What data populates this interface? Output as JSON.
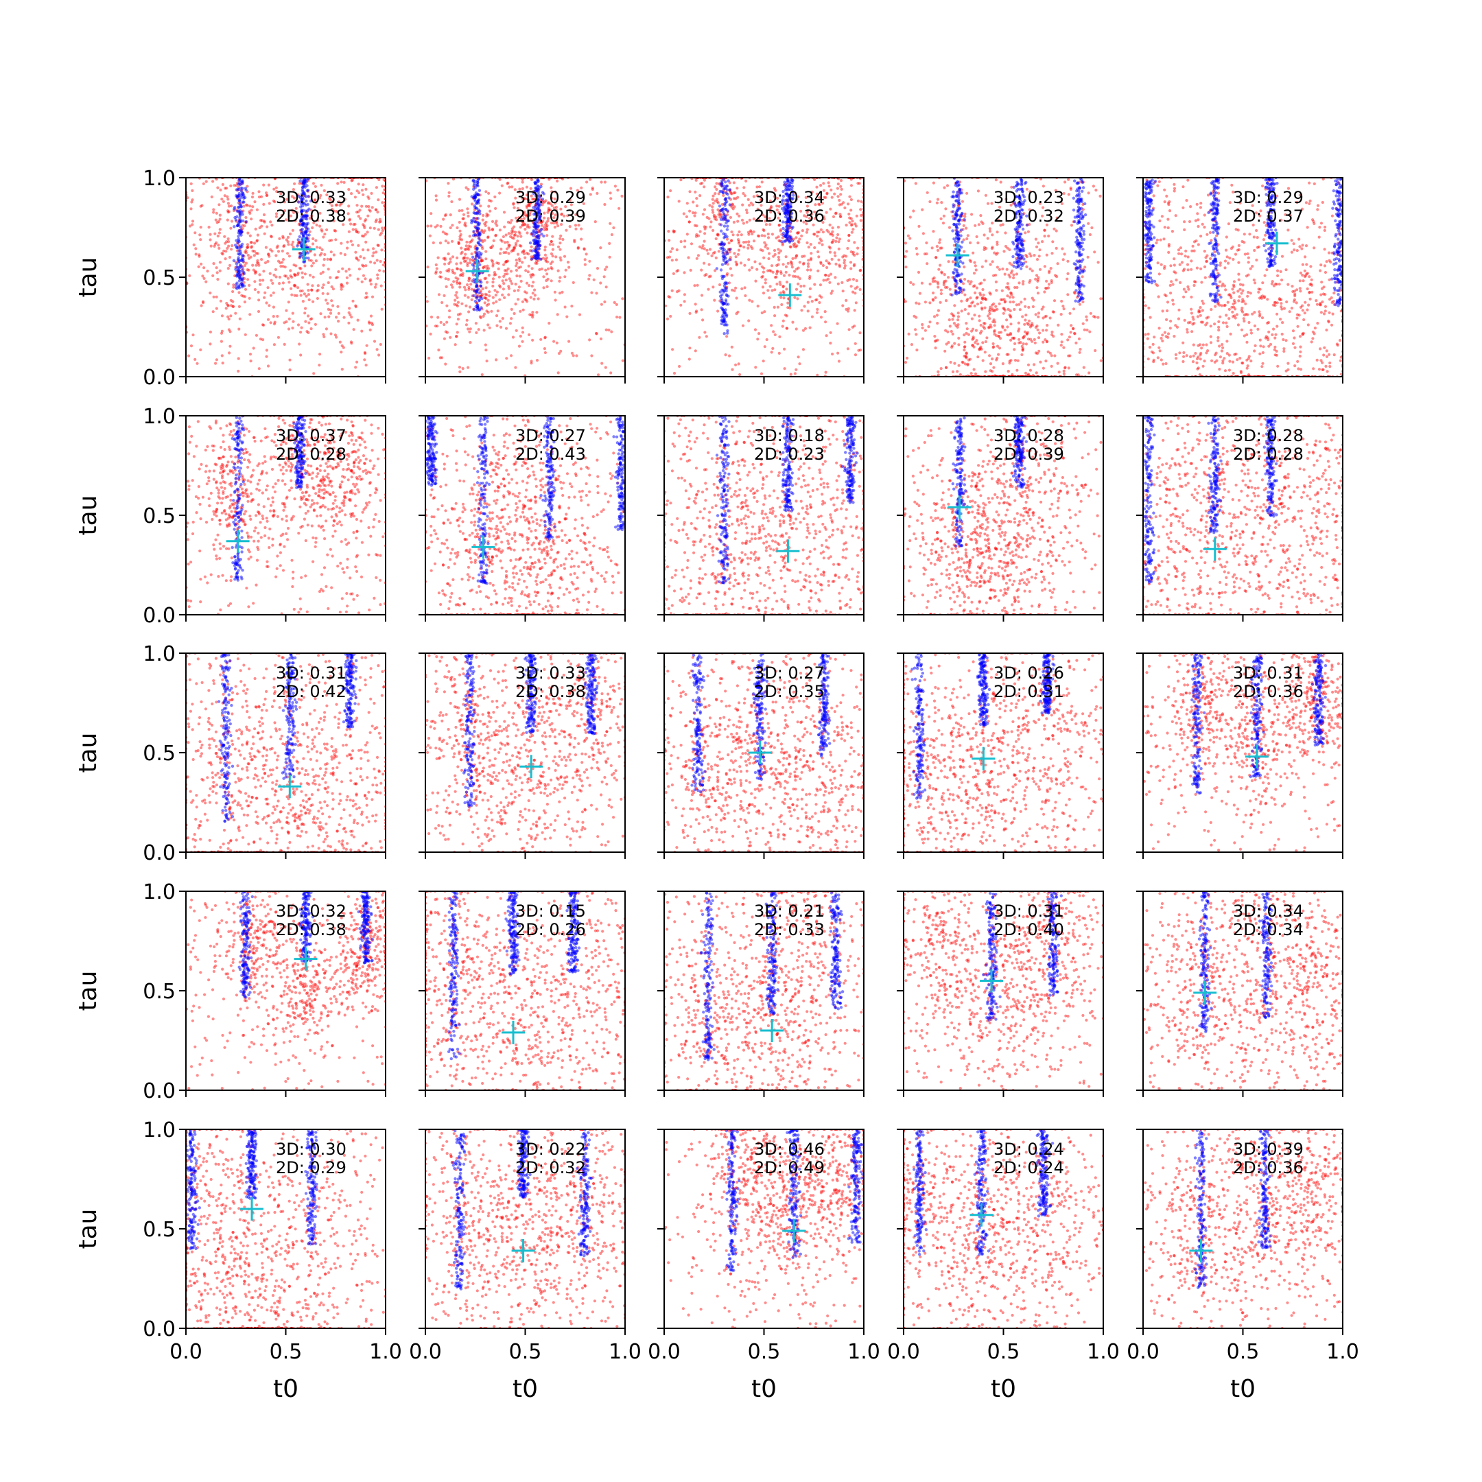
{
  "chart_data": {
    "type": "scatter",
    "layout": "5x5 grid of subplots, shared axes",
    "xlabel": "t0",
    "ylabel": "tau",
    "xlim": [
      0,
      1
    ],
    "ylim": [
      0,
      1
    ],
    "xticks": [
      "0.0",
      "0.5",
      "1.0"
    ],
    "yticks": [
      "0.0",
      "0.5",
      "1.0"
    ],
    "grid": false,
    "colors": {
      "red_points": "#ff0000",
      "blue_points": "#0000ff",
      "marker": "#17becf"
    },
    "panels": [
      {
        "row": 0,
        "col": 0,
        "label3d": "3D: 0.33",
        "label2d": "2D: 0.38",
        "marker": [
          0.59,
          0.64
        ],
        "blue_stripes": [
          0.27,
          0.59
        ],
        "red_clusters": [
          [
            0.25,
            0.65
          ],
          [
            0.59,
            0.55
          ],
          [
            0.9,
            0.8
          ]
        ],
        "red_sigma": 0.22
      },
      {
        "row": 0,
        "col": 1,
        "label3d": "3D: 0.29",
        "label2d": "2D: 0.39",
        "marker": [
          0.26,
          0.53
        ],
        "blue_stripes": [
          0.26,
          0.56
        ],
        "red_clusters": [
          [
            0.25,
            0.55
          ],
          [
            0.55,
            0.75
          ]
        ],
        "red_sigma": 0.18
      },
      {
        "row": 0,
        "col": 2,
        "label3d": "3D: 0.34",
        "label2d": "2D: 0.36",
        "marker": [
          0.63,
          0.41
        ],
        "blue_stripes": [
          0.3,
          0.62
        ],
        "red_clusters": [
          [
            0.62,
            0.6
          ],
          [
            0.9,
            0.75
          ],
          [
            0.3,
            0.8
          ]
        ],
        "red_sigma": 0.2
      },
      {
        "row": 0,
        "col": 3,
        "label3d": "3D: 0.23",
        "label2d": "2D: 0.32",
        "marker": [
          0.27,
          0.61
        ],
        "blue_stripes": [
          0.27,
          0.58,
          0.88
        ],
        "red_clusters": [
          [
            0.3,
            0.4
          ],
          [
            0.6,
            0.3
          ],
          [
            0.5,
            0.15
          ]
        ],
        "red_sigma": 0.3
      },
      {
        "row": 0,
        "col": 4,
        "label3d": "3D: 0.29",
        "label2d": "2D: 0.37",
        "marker": [
          0.67,
          0.67
        ],
        "blue_stripes": [
          0.03,
          0.36,
          0.64,
          0.98
        ],
        "red_clusters": [
          [
            0.5,
            0.2
          ],
          [
            0.2,
            0.4
          ],
          [
            0.85,
            0.3
          ]
        ],
        "red_sigma": 0.3
      },
      {
        "row": 1,
        "col": 0,
        "label3d": "3D: 0.37",
        "label2d": "2D: 0.28",
        "marker": [
          0.26,
          0.37
        ],
        "blue_stripes": [
          0.26,
          0.57
        ],
        "red_clusters": [
          [
            0.25,
            0.6
          ],
          [
            0.57,
            0.75
          ],
          [
            0.8,
            0.7
          ]
        ],
        "red_sigma": 0.17
      },
      {
        "row": 1,
        "col": 1,
        "label3d": "3D: 0.27",
        "label2d": "2D: 0.43",
        "marker": [
          0.29,
          0.34
        ],
        "blue_stripes": [
          0.29,
          0.62,
          0.03,
          0.98
        ],
        "red_clusters": [
          [
            0.3,
            0.3
          ],
          [
            0.6,
            0.15
          ],
          [
            0.5,
            0.5
          ]
        ],
        "red_sigma": 0.3
      },
      {
        "row": 1,
        "col": 2,
        "label3d": "3D: 0.18",
        "label2d": "2D: 0.23",
        "marker": [
          0.62,
          0.32
        ],
        "blue_stripes": [
          0.3,
          0.62,
          0.93
        ],
        "red_clusters": [
          [
            0.5,
            0.5
          ],
          [
            0.2,
            0.3
          ],
          [
            0.8,
            0.4
          ]
        ],
        "red_sigma": 0.32
      },
      {
        "row": 1,
        "col": 3,
        "label3d": "3D: 0.28",
        "label2d": "2D: 0.39",
        "marker": [
          0.28,
          0.54
        ],
        "blue_stripes": [
          0.28,
          0.58
        ],
        "red_clusters": [
          [
            0.25,
            0.35
          ],
          [
            0.6,
            0.6
          ],
          [
            0.5,
            0.2
          ]
        ],
        "red_sigma": 0.24
      },
      {
        "row": 1,
        "col": 4,
        "label3d": "3D: 0.28",
        "label2d": "2D: 0.28",
        "marker": [
          0.36,
          0.33
        ],
        "blue_stripes": [
          0.03,
          0.36,
          0.64
        ],
        "red_clusters": [
          [
            0.5,
            0.5
          ],
          [
            0.2,
            0.4
          ],
          [
            0.8,
            0.5
          ]
        ],
        "red_sigma": 0.3
      },
      {
        "row": 2,
        "col": 0,
        "label3d": "3D: 0.31",
        "label2d": "2D: 0.42",
        "marker": [
          0.52,
          0.33
        ],
        "blue_stripes": [
          0.2,
          0.52,
          0.82
        ],
        "red_clusters": [
          [
            0.5,
            0.4
          ],
          [
            0.2,
            0.3
          ],
          [
            0.8,
            0.3
          ]
        ],
        "red_sigma": 0.3
      },
      {
        "row": 2,
        "col": 1,
        "label3d": "3D: 0.33",
        "label2d": "2D: 0.38",
        "marker": [
          0.53,
          0.43
        ],
        "blue_stripes": [
          0.22,
          0.53,
          0.83
        ],
        "red_clusters": [
          [
            0.25,
            0.6
          ],
          [
            0.5,
            0.4
          ],
          [
            0.8,
            0.7
          ]
        ],
        "red_sigma": 0.24
      },
      {
        "row": 2,
        "col": 2,
        "label3d": "3D: 0.27",
        "label2d": "2D: 0.35",
        "marker": [
          0.48,
          0.5
        ],
        "blue_stripes": [
          0.17,
          0.48,
          0.8
        ],
        "red_clusters": [
          [
            0.2,
            0.4
          ],
          [
            0.5,
            0.5
          ],
          [
            0.8,
            0.3
          ]
        ],
        "red_sigma": 0.27
      },
      {
        "row": 2,
        "col": 3,
        "label3d": "3D: 0.26",
        "label2d": "2D: 0.31",
        "marker": [
          0.4,
          0.47
        ],
        "blue_stripes": [
          0.08,
          0.4,
          0.72
        ],
        "red_clusters": [
          [
            0.1,
            0.4
          ],
          [
            0.4,
            0.3
          ],
          [
            0.7,
            0.5
          ]
        ],
        "red_sigma": 0.28
      },
      {
        "row": 2,
        "col": 4,
        "label3d": "3D: 0.31",
        "label2d": "2D: 0.36",
        "marker": [
          0.57,
          0.48
        ],
        "blue_stripes": [
          0.27,
          0.57,
          0.88
        ],
        "red_clusters": [
          [
            0.3,
            0.7
          ],
          [
            0.57,
            0.6
          ],
          [
            0.87,
            0.75
          ]
        ],
        "red_sigma": 0.17
      },
      {
        "row": 3,
        "col": 0,
        "label3d": "3D: 0.32",
        "label2d": "2D: 0.38",
        "marker": [
          0.6,
          0.66
        ],
        "blue_stripes": [
          0.3,
          0.6,
          0.9
        ],
        "red_clusters": [
          [
            0.9,
            0.7
          ],
          [
            0.6,
            0.5
          ],
          [
            0.35,
            0.75
          ]
        ],
        "red_sigma": 0.15
      },
      {
        "row": 3,
        "col": 1,
        "label3d": "3D: 0.15",
        "label2d": "2D: 0.26",
        "marker": [
          0.44,
          0.29
        ],
        "blue_stripes": [
          0.14,
          0.44,
          0.74
        ],
        "red_clusters": [
          [
            0.1,
            0.6
          ],
          [
            0.45,
            0.4
          ],
          [
            0.75,
            0.5
          ]
        ],
        "red_sigma": 0.27
      },
      {
        "row": 3,
        "col": 2,
        "label3d": "3D: 0.21",
        "label2d": "2D: 0.33",
        "marker": [
          0.54,
          0.3
        ],
        "blue_stripes": [
          0.22,
          0.54,
          0.86
        ],
        "red_clusters": [
          [
            0.25,
            0.35
          ],
          [
            0.55,
            0.35
          ],
          [
            0.7,
            0.75
          ]
        ],
        "red_sigma": 0.25
      },
      {
        "row": 3,
        "col": 3,
        "label3d": "3D: 0.31",
        "label2d": "2D: 0.40",
        "marker": [
          0.44,
          0.55
        ],
        "blue_stripes": [
          0.44,
          0.75
        ],
        "red_clusters": [
          [
            0.2,
            0.7
          ],
          [
            0.5,
            0.5
          ],
          [
            0.75,
            0.75
          ]
        ],
        "red_sigma": 0.22
      },
      {
        "row": 3,
        "col": 4,
        "label3d": "3D: 0.34",
        "label2d": "2D: 0.34",
        "marker": [
          0.31,
          0.49
        ],
        "blue_stripes": [
          0.31,
          0.62
        ],
        "red_clusters": [
          [
            0.3,
            0.5
          ],
          [
            0.6,
            0.65
          ],
          [
            0.85,
            0.5
          ]
        ],
        "red_sigma": 0.27
      },
      {
        "row": 4,
        "col": 0,
        "label3d": "3D: 0.30",
        "label2d": "2D: 0.29",
        "marker": [
          0.33,
          0.6
        ],
        "blue_stripes": [
          0.03,
          0.33,
          0.63
        ],
        "red_clusters": [
          [
            0.3,
            0.2
          ],
          [
            0.6,
            0.4
          ],
          [
            0.1,
            0.6
          ]
        ],
        "red_sigma": 0.3
      },
      {
        "row": 4,
        "col": 1,
        "label3d": "3D: 0.22",
        "label2d": "2D: 0.32",
        "marker": [
          0.49,
          0.39
        ],
        "blue_stripes": [
          0.17,
          0.49,
          0.8
        ],
        "red_clusters": [
          [
            0.2,
            0.5
          ],
          [
            0.5,
            0.5
          ],
          [
            0.8,
            0.6
          ]
        ],
        "red_sigma": 0.27
      },
      {
        "row": 4,
        "col": 2,
        "label3d": "3D: 0.46",
        "label2d": "2D: 0.49",
        "marker": [
          0.65,
          0.49
        ],
        "blue_stripes": [
          0.34,
          0.65,
          0.96
        ],
        "red_clusters": [
          [
            0.6,
            0.6
          ],
          [
            0.85,
            0.75
          ],
          [
            0.4,
            0.8
          ]
        ],
        "red_sigma": 0.2
      },
      {
        "row": 4,
        "col": 3,
        "label3d": "3D: 0.24",
        "label2d": "2D: 0.24",
        "marker": [
          0.39,
          0.57
        ],
        "blue_stripes": [
          0.08,
          0.39,
          0.7
        ],
        "red_clusters": [
          [
            0.08,
            0.6
          ],
          [
            0.4,
            0.45
          ],
          [
            0.7,
            0.5
          ]
        ],
        "red_sigma": 0.27
      },
      {
        "row": 4,
        "col": 4,
        "label3d": "3D: 0.39",
        "label2d": "2D: 0.36",
        "marker": [
          0.29,
          0.39
        ],
        "blue_stripes": [
          0.29,
          0.61
        ],
        "red_clusters": [
          [
            0.29,
            0.5
          ],
          [
            0.6,
            0.6
          ],
          [
            0.85,
            0.7
          ]
        ],
        "red_sigma": 0.24
      }
    ]
  }
}
